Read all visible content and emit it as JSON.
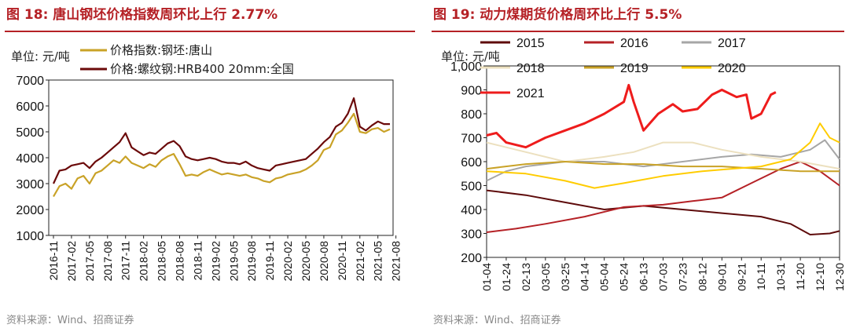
{
  "left": {
    "title": "图 18:  唐山钢坯价格指数周环比上行 2.77%",
    "source": "资料来源：Wind、招商证券",
    "unit": "单位:  元/吨",
    "chart_data": {
      "type": "line",
      "ylim": [
        1000,
        7000
      ],
      "yticks": [
        "1000",
        "2000",
        "3000",
        "4000",
        "5000",
        "6000",
        "7000"
      ],
      "xticks": [
        "2016-11",
        "2017-02",
        "2017-05",
        "2017-08",
        "2017-11",
        "2018-02",
        "2018-05",
        "2018-08",
        "2018-11",
        "2019-02",
        "2019-05",
        "2019-08",
        "2019-11",
        "2020-02",
        "2020-05",
        "2020-08",
        "2020-11",
        "2021-02",
        "2021-05",
        "2021-08"
      ],
      "x_start": "2016-11",
      "x_months": 57,
      "series": [
        {
          "name": "价格指数:钢坯:唐山",
          "color": "#c9a227",
          "points": [
            [
              0,
              2500
            ],
            [
              1,
              2900
            ],
            [
              2,
              3000
            ],
            [
              3,
              2800
            ],
            [
              4,
              3200
            ],
            [
              5,
              3300
            ],
            [
              6,
              3000
            ],
            [
              7,
              3400
            ],
            [
              8,
              3500
            ],
            [
              9,
              3700
            ],
            [
              10,
              3900
            ],
            [
              11,
              3800
            ],
            [
              12,
              4050
            ],
            [
              13,
              3800
            ],
            [
              14,
              3700
            ],
            [
              15,
              3600
            ],
            [
              16,
              3750
            ],
            [
              17,
              3650
            ],
            [
              18,
              3900
            ],
            [
              19,
              4050
            ],
            [
              20,
              4150
            ],
            [
              21,
              3750
            ],
            [
              22,
              3300
            ],
            [
              23,
              3350
            ],
            [
              24,
              3300
            ],
            [
              25,
              3450
            ],
            [
              26,
              3550
            ],
            [
              27,
              3450
            ],
            [
              28,
              3350
            ],
            [
              29,
              3400
            ],
            [
              30,
              3350
            ],
            [
              31,
              3300
            ],
            [
              32,
              3350
            ],
            [
              33,
              3250
            ],
            [
              34,
              3200
            ],
            [
              35,
              3100
            ],
            [
              36,
              3050
            ],
            [
              37,
              3200
            ],
            [
              38,
              3250
            ],
            [
              39,
              3350
            ],
            [
              40,
              3400
            ],
            [
              41,
              3450
            ],
            [
              42,
              3550
            ],
            [
              43,
              3700
            ],
            [
              44,
              3900
            ],
            [
              45,
              4300
            ],
            [
              46,
              4400
            ],
            [
              47,
              4900
            ],
            [
              48,
              5050
            ],
            [
              49,
              5350
            ],
            [
              50,
              5700
            ],
            [
              51,
              5000
            ],
            [
              52,
              4950
            ],
            [
              53,
              5100
            ],
            [
              54,
              5150
            ],
            [
              55,
              5000
            ],
            [
              56,
              5100
            ]
          ]
        },
        {
          "name": "价格:螺纹钢:HRB400 20mm:全国",
          "color": "#6b0a0a",
          "points": [
            [
              0,
              3000
            ],
            [
              1,
              3500
            ],
            [
              2,
              3550
            ],
            [
              3,
              3700
            ],
            [
              4,
              3750
            ],
            [
              5,
              3800
            ],
            [
              6,
              3600
            ],
            [
              7,
              3850
            ],
            [
              8,
              4000
            ],
            [
              9,
              4200
            ],
            [
              10,
              4400
            ],
            [
              11,
              4600
            ],
            [
              12,
              4950
            ],
            [
              13,
              4400
            ],
            [
              14,
              4250
            ],
            [
              15,
              4100
            ],
            [
              16,
              4200
            ],
            [
              17,
              4150
            ],
            [
              18,
              4350
            ],
            [
              19,
              4550
            ],
            [
              20,
              4650
            ],
            [
              21,
              4450
            ],
            [
              22,
              4050
            ],
            [
              23,
              3950
            ],
            [
              24,
              3900
            ],
            [
              25,
              3950
            ],
            [
              26,
              4000
            ],
            [
              27,
              3950
            ],
            [
              28,
              3850
            ],
            [
              29,
              3800
            ],
            [
              30,
              3800
            ],
            [
              31,
              3750
            ],
            [
              32,
              3850
            ],
            [
              33,
              3700
            ],
            [
              34,
              3600
            ],
            [
              35,
              3550
            ],
            [
              36,
              3500
            ],
            [
              37,
              3700
            ],
            [
              38,
              3750
            ],
            [
              39,
              3800
            ],
            [
              40,
              3850
            ],
            [
              41,
              3900
            ],
            [
              42,
              3950
            ],
            [
              43,
              4150
            ],
            [
              44,
              4350
            ],
            [
              45,
              4600
            ],
            [
              46,
              4800
            ],
            [
              47,
              5200
            ],
            [
              48,
              5350
            ],
            [
              49,
              5700
            ],
            [
              50,
              6300
            ],
            [
              51,
              5200
            ],
            [
              52,
              5050
            ],
            [
              53,
              5250
            ],
            [
              54,
              5400
            ],
            [
              55,
              5300
            ],
            [
              56,
              5300
            ]
          ]
        }
      ]
    }
  },
  "right": {
    "title": "图 19:  动力煤期货价格周环比上行 5.5%",
    "source": "资料来源：Wind、招商证券",
    "unit": "单位:  元/吨",
    "chart_data": {
      "type": "line",
      "ylim": [
        200,
        1000
      ],
      "yticks": [
        "200",
        "300",
        "400",
        "500",
        "600",
        "700",
        "800",
        "900",
        "1,000"
      ],
      "xticks": [
        "01-04",
        "01-24",
        "02-13",
        "03-05",
        "03-25",
        "04-14",
        "05-04",
        "05-24",
        "06-13",
        "07-03",
        "07-23",
        "08-12",
        "09-01",
        "09-21",
        "10-11",
        "10-31",
        "11-20",
        "12-10",
        "12-30"
      ],
      "x_start": "01-04",
      "x_days": 360,
      "series": [
        {
          "name": "2015",
          "color": "#5e0b0b",
          "points": [
            [
              0,
              480
            ],
            [
              40,
              460
            ],
            [
              80,
              430
            ],
            [
              120,
              400
            ],
            [
              160,
              415
            ],
            [
              200,
              400
            ],
            [
              240,
              385
            ],
            [
              280,
              370
            ],
            [
              310,
              340
            ],
            [
              330,
              295
            ],
            [
              350,
              300
            ],
            [
              360,
              310
            ]
          ]
        },
        {
          "name": "2016",
          "color": "#b52126",
          "points": [
            [
              0,
              305
            ],
            [
              30,
              320
            ],
            [
              60,
              340
            ],
            [
              100,
              370
            ],
            [
              140,
              410
            ],
            [
              180,
              420
            ],
            [
              210,
              435
            ],
            [
              240,
              450
            ],
            [
              270,
              510
            ],
            [
              300,
              570
            ],
            [
              320,
              600
            ],
            [
              340,
              560
            ],
            [
              360,
              500
            ]
          ]
        },
        {
          "name": "2017",
          "color": "#a6a6a6",
          "points": [
            [
              0,
              520
            ],
            [
              20,
              560
            ],
            [
              40,
              580
            ],
            [
              80,
              600
            ],
            [
              120,
              600
            ],
            [
              160,
              580
            ],
            [
              200,
              600
            ],
            [
              240,
              620
            ],
            [
              270,
              630
            ],
            [
              300,
              620
            ],
            [
              330,
              650
            ],
            [
              345,
              690
            ],
            [
              360,
              610
            ]
          ]
        },
        {
          "name": "2018",
          "color": "#ece0bf",
          "points": [
            [
              0,
              680
            ],
            [
              40,
              640
            ],
            [
              80,
              600
            ],
            [
              120,
              620
            ],
            [
              150,
              640
            ],
            [
              180,
              680
            ],
            [
              210,
              680
            ],
            [
              240,
              650
            ],
            [
              280,
              620
            ],
            [
              320,
              600
            ],
            [
              360,
              570
            ]
          ]
        },
        {
          "name": "2019",
          "color": "#c9a227",
          "points": [
            [
              0,
              570
            ],
            [
              40,
              590
            ],
            [
              80,
              600
            ],
            [
              120,
              590
            ],
            [
              160,
              590
            ],
            [
              200,
              580
            ],
            [
              240,
              580
            ],
            [
              280,
              570
            ],
            [
              320,
              560
            ],
            [
              360,
              560
            ]
          ]
        },
        {
          "name": "2020",
          "color": "#ffcc00",
          "points": [
            [
              0,
              560
            ],
            [
              40,
              550
            ],
            [
              80,
              520
            ],
            [
              110,
              490
            ],
            [
              140,
              510
            ],
            [
              180,
              540
            ],
            [
              220,
              560
            ],
            [
              250,
              570
            ],
            [
              280,
              580
            ],
            [
              310,
              610
            ],
            [
              330,
              680
            ],
            [
              340,
              760
            ],
            [
              350,
              700
            ],
            [
              360,
              680
            ]
          ]
        },
        {
          "name": "2021",
          "color": "#ee1c1c",
          "points": [
            [
              0,
              710
            ],
            [
              10,
              720
            ],
            [
              20,
              680
            ],
            [
              40,
              660
            ],
            [
              60,
              700
            ],
            [
              80,
              730
            ],
            [
              100,
              760
            ],
            [
              120,
              800
            ],
            [
              140,
              850
            ],
            [
              145,
              920
            ],
            [
              150,
              850
            ],
            [
              160,
              730
            ],
            [
              175,
              800
            ],
            [
              190,
              840
            ],
            [
              200,
              810
            ],
            [
              215,
              820
            ],
            [
              230,
              880
            ],
            [
              240,
              900
            ],
            [
              255,
              870
            ],
            [
              265,
              880
            ],
            [
              270,
              780
            ],
            [
              280,
              800
            ],
            [
              290,
              880
            ],
            [
              295,
              890
            ]
          ]
        }
      ]
    }
  }
}
